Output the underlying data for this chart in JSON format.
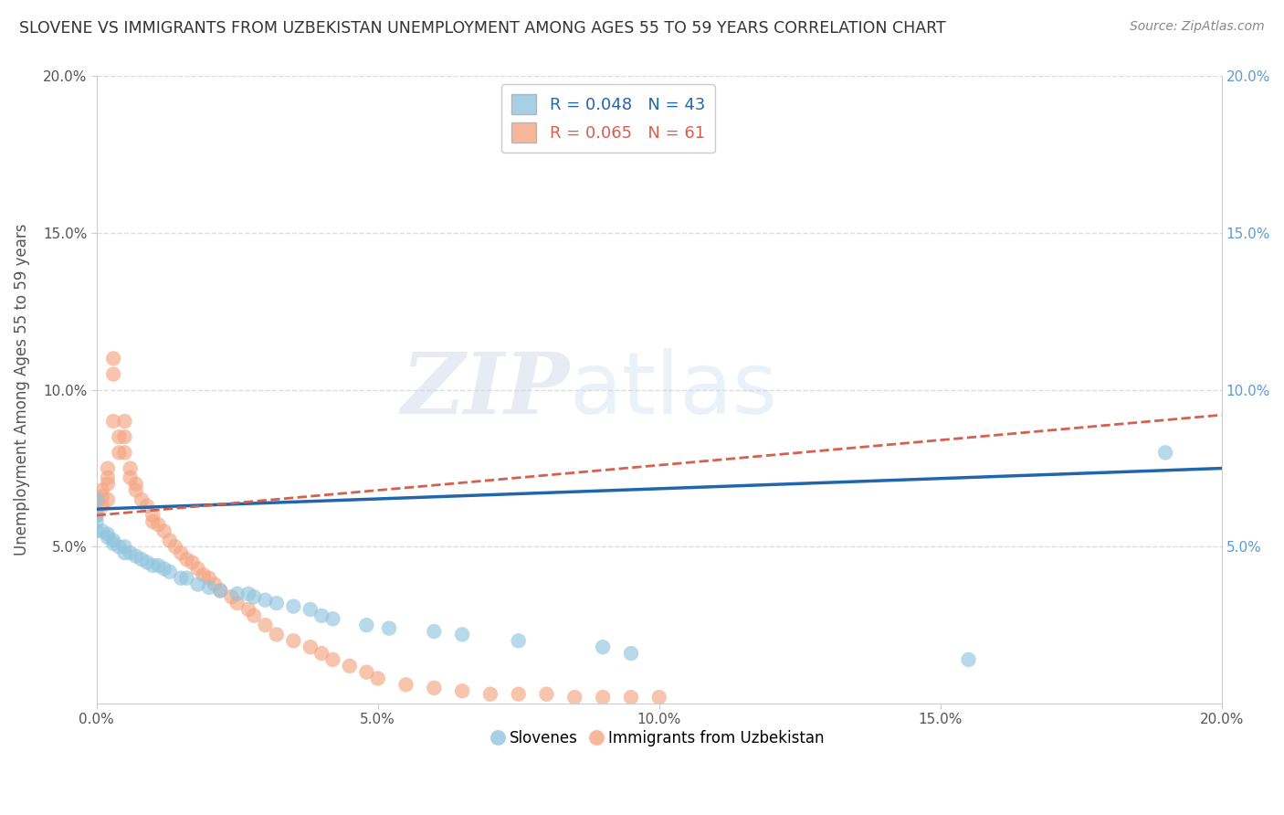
{
  "title": "SLOVENE VS IMMIGRANTS FROM UZBEKISTAN UNEMPLOYMENT AMONG AGES 55 TO 59 YEARS CORRELATION CHART",
  "source": "Source: ZipAtlas.com",
  "ylabel": "Unemployment Among Ages 55 to 59 years",
  "xlim": [
    0.0,
    0.2
  ],
  "ylim": [
    0.0,
    0.2
  ],
  "xticks": [
    0.0,
    0.05,
    0.1,
    0.15,
    0.2
  ],
  "yticks": [
    0.05,
    0.1,
    0.15,
    0.2
  ],
  "xtick_labels": [
    "0.0%",
    "5.0%",
    "10.0%",
    "15.0%",
    "20.0%"
  ],
  "ytick_labels": [
    "5.0%",
    "10.0%",
    "15.0%",
    "20.0%"
  ],
  "slovene_color": "#92c5de",
  "uzbek_color": "#f4a582",
  "slovene_line_color": "#2166ac",
  "uzbek_line_color": "#d6604d",
  "slovene_R": 0.048,
  "slovene_N": 43,
  "uzbek_R": 0.065,
  "uzbek_N": 61,
  "legend_entries": [
    "Slovenes",
    "Immigrants from Uzbekistan"
  ],
  "watermark_zip": "ZIP",
  "watermark_atlas": "atlas",
  "slovene_x": [
    0.0,
    0.0,
    0.0,
    0.0,
    0.001,
    0.002,
    0.002,
    0.003,
    0.003,
    0.004,
    0.005,
    0.005,
    0.006,
    0.007,
    0.008,
    0.009,
    0.01,
    0.011,
    0.012,
    0.013,
    0.015,
    0.016,
    0.018,
    0.02,
    0.022,
    0.025,
    0.027,
    0.028,
    0.03,
    0.032,
    0.035,
    0.038,
    0.04,
    0.042,
    0.048,
    0.052,
    0.06,
    0.065,
    0.075,
    0.09,
    0.095,
    0.155,
    0.19
  ],
  "slovene_y": [
    0.065,
    0.06,
    0.058,
    0.055,
    0.055,
    0.054,
    0.053,
    0.052,
    0.051,
    0.05,
    0.05,
    0.048,
    0.048,
    0.047,
    0.046,
    0.045,
    0.044,
    0.044,
    0.043,
    0.042,
    0.04,
    0.04,
    0.038,
    0.037,
    0.036,
    0.035,
    0.035,
    0.034,
    0.033,
    0.032,
    0.031,
    0.03,
    0.028,
    0.027,
    0.025,
    0.024,
    0.023,
    0.022,
    0.02,
    0.018,
    0.016,
    0.014,
    0.08
  ],
  "uzbek_x": [
    0.0,
    0.0,
    0.0,
    0.001,
    0.001,
    0.001,
    0.002,
    0.002,
    0.002,
    0.002,
    0.003,
    0.003,
    0.003,
    0.004,
    0.004,
    0.005,
    0.005,
    0.005,
    0.006,
    0.006,
    0.007,
    0.007,
    0.008,
    0.009,
    0.01,
    0.01,
    0.011,
    0.012,
    0.013,
    0.014,
    0.015,
    0.016,
    0.017,
    0.018,
    0.019,
    0.02,
    0.021,
    0.022,
    0.024,
    0.025,
    0.027,
    0.028,
    0.03,
    0.032,
    0.035,
    0.038,
    0.04,
    0.042,
    0.045,
    0.048,
    0.05,
    0.055,
    0.06,
    0.065,
    0.07,
    0.075,
    0.08,
    0.085,
    0.09,
    0.095,
    0.1
  ],
  "uzbek_y": [
    0.065,
    0.062,
    0.06,
    0.068,
    0.066,
    0.063,
    0.075,
    0.072,
    0.07,
    0.065,
    0.11,
    0.105,
    0.09,
    0.085,
    0.08,
    0.09,
    0.085,
    0.08,
    0.075,
    0.072,
    0.07,
    0.068,
    0.065,
    0.063,
    0.06,
    0.058,
    0.057,
    0.055,
    0.052,
    0.05,
    0.048,
    0.046,
    0.045,
    0.043,
    0.041,
    0.04,
    0.038,
    0.036,
    0.034,
    0.032,
    0.03,
    0.028,
    0.025,
    0.022,
    0.02,
    0.018,
    0.016,
    0.014,
    0.012,
    0.01,
    0.008,
    0.006,
    0.005,
    0.004,
    0.003,
    0.003,
    0.003,
    0.002,
    0.002,
    0.002,
    0.002
  ]
}
